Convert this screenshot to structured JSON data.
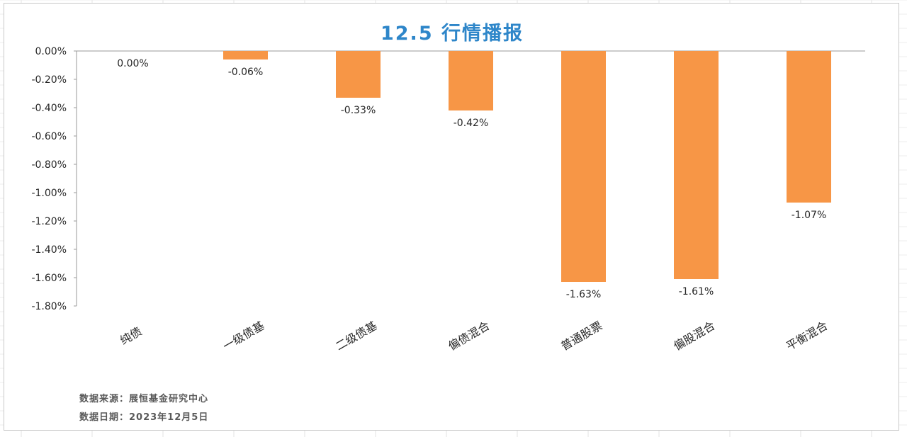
{
  "chart_data": {
    "type": "bar",
    "title": "12.5 行情播报",
    "categories": [
      "纯债",
      "一级债基",
      "二级债基",
      "偏债混合",
      "普通股票",
      "偏股混合",
      "平衡混合"
    ],
    "values": [
      0.0,
      -0.06,
      -0.33,
      -0.42,
      -1.63,
      -1.61,
      -1.07
    ],
    "value_labels": [
      "0.00%",
      "-0.06%",
      "-0.33%",
      "-0.42%",
      "-1.63%",
      "-1.61%",
      "-1.07%"
    ],
    "y_ticks": [
      "0.00%",
      "-0.20%",
      "-0.40%",
      "-0.60%",
      "-0.80%",
      "-1.00%",
      "-1.20%",
      "-1.40%",
      "-1.60%",
      "-1.80%"
    ],
    "ylim": [
      -1.8,
      0
    ],
    "bar_color": "#F79646",
    "title_color": "#2E86C9",
    "grid": false,
    "legend": "none"
  },
  "notes": {
    "source": "数据来源：展恒基金研究中心",
    "date": "数据日期：2023年12月5日"
  }
}
